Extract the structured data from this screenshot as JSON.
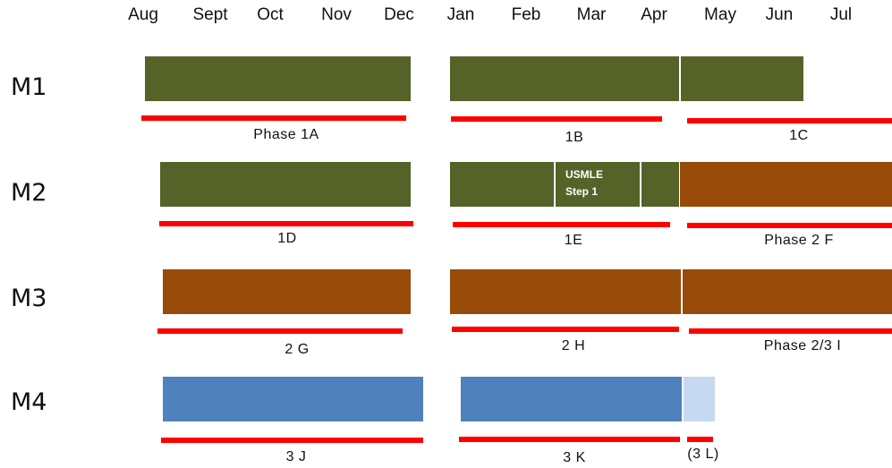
{
  "colors": {
    "phase1": "#556228",
    "phase2": "#984A09",
    "phase3": "#4F81BD",
    "phase3_light": "#C6D9F1",
    "timeline": "#FF0000",
    "divider": "#FFFFFF"
  },
  "months": [
    "Aug",
    "Sept",
    "Oct",
    "Nov",
    "Dec",
    "Jan",
    "Feb",
    "Mar",
    "Apr",
    "May",
    "Jun",
    "Jul"
  ],
  "rows": [
    {
      "label": "M1",
      "blocks": [
        {
          "name": "m1-block-phase-1a",
          "color": "phase1",
          "start": "Aug",
          "end": "Dec"
        },
        {
          "name": "m1-block-1b",
          "color": "phase1",
          "start": "Jan",
          "end": "Apr"
        },
        {
          "name": "m1-block-1c",
          "color": "phase1",
          "start": "May",
          "end": "Jun"
        }
      ],
      "phases": [
        {
          "label": "Phase 1A"
        },
        {
          "label": "1B"
        },
        {
          "label": "1C"
        }
      ]
    },
    {
      "label": "M2",
      "blocks": [
        {
          "name": "m2-block-1d",
          "color": "phase1",
          "start": "Aug",
          "end": "Dec"
        },
        {
          "name": "m2-block-1e",
          "color": "phase1",
          "start": "Jan",
          "end": "Apr",
          "text": "USMLE\nStep 1"
        },
        {
          "name": "m2-block-phase-2f",
          "color": "phase2",
          "start": "May",
          "end": "Jul"
        }
      ],
      "phases": [
        {
          "label": "1D"
        },
        {
          "label": "1E"
        },
        {
          "label": "Phase 2 F"
        }
      ]
    },
    {
      "label": "M3",
      "blocks": [
        {
          "name": "m3-block-2g",
          "color": "phase2",
          "start": "Aug",
          "end": "Dec"
        },
        {
          "name": "m3-block-2h",
          "color": "phase2",
          "start": "Jan",
          "end": "Apr"
        },
        {
          "name": "m3-block-phase-2-3i",
          "color": "phase2",
          "start": "May",
          "end": "Jul"
        }
      ],
      "phases": [
        {
          "label": "2 G"
        },
        {
          "label": "2 H"
        },
        {
          "label": "Phase 2/3 I"
        }
      ]
    },
    {
      "label": "M4",
      "blocks": [
        {
          "name": "m4-block-3j",
          "color": "phase3",
          "start": "Aug",
          "end": "Dec"
        },
        {
          "name": "m4-block-3k",
          "color": "phase3",
          "start": "Jan",
          "end": "Apr"
        },
        {
          "name": "m4-block-3l",
          "color": "phase3_light",
          "start": "May",
          "end": "May"
        }
      ],
      "phases": [
        {
          "label": "3 J"
        },
        {
          "label": "3 K"
        },
        {
          "label": "(3 L)"
        }
      ]
    }
  ]
}
